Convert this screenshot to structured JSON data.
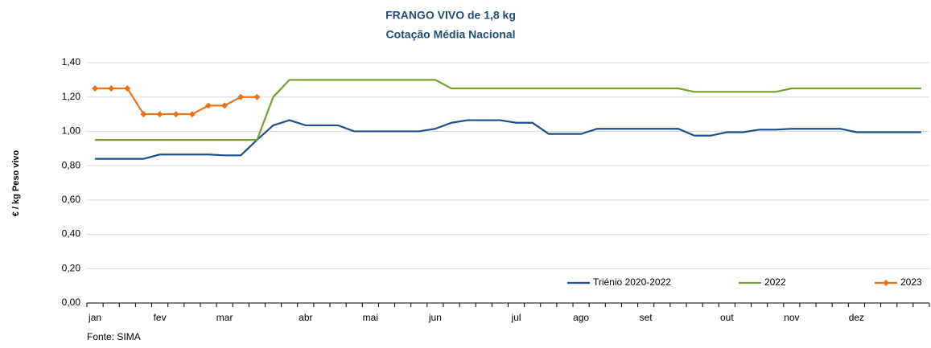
{
  "chart_data": {
    "type": "line",
    "title": "FRANGO VIVO de 1,8 kg",
    "subtitle": "Cotação Média Nacional",
    "y_label": "€ / kg Peso vivo",
    "source": "Fonte: SIMA",
    "categories": [
      "jan",
      null,
      null,
      null,
      "fev",
      null,
      null,
      null,
      "mar",
      null,
      null,
      null,
      null,
      "abr",
      null,
      null,
      null,
      "mai",
      null,
      null,
      null,
      "jun",
      null,
      null,
      null,
      null,
      "jul",
      null,
      null,
      null,
      "ago",
      null,
      null,
      null,
      "set",
      null,
      null,
      null,
      null,
      "out",
      null,
      null,
      null,
      "nov",
      null,
      null,
      null,
      "dez",
      null,
      null,
      null,
      null
    ],
    "series": [
      {
        "name": "Triénio 2020-2022",
        "color": "#1f4e8c",
        "marker": "none",
        "values": [
          0.84,
          0.84,
          0.84,
          0.84,
          0.865,
          0.865,
          0.865,
          0.865,
          0.86,
          0.86,
          0.95,
          1.035,
          1.065,
          1.035,
          1.035,
          1.035,
          1.0,
          1.0,
          1.0,
          1.0,
          1.0,
          1.015,
          1.05,
          1.065,
          1.065,
          1.065,
          1.05,
          1.05,
          0.985,
          0.985,
          0.985,
          1.015,
          1.015,
          1.015,
          1.015,
          1.015,
          1.015,
          0.975,
          0.975,
          0.995,
          0.995,
          1.01,
          1.01,
          1.015,
          1.015,
          1.015,
          1.015,
          0.995,
          0.995,
          0.995,
          0.995,
          0.995
        ]
      },
      {
        "name": "2022",
        "color": "#77a033",
        "marker": "none",
        "values": [
          0.95,
          0.95,
          0.95,
          0.95,
          0.95,
          0.95,
          0.95,
          0.95,
          0.95,
          0.95,
          0.95,
          1.2,
          1.3,
          1.3,
          1.3,
          1.3,
          1.3,
          1.3,
          1.3,
          1.3,
          1.3,
          1.3,
          1.25,
          1.25,
          1.25,
          1.25,
          1.25,
          1.25,
          1.25,
          1.25,
          1.25,
          1.25,
          1.25,
          1.25,
          1.25,
          1.25,
          1.25,
          1.23,
          1.23,
          1.23,
          1.23,
          1.23,
          1.23,
          1.25,
          1.25,
          1.25,
          1.25,
          1.25,
          1.25,
          1.25,
          1.25,
          1.25
        ]
      },
      {
        "name": "2023",
        "color": "#e8731a",
        "marker": "diamond",
        "values": [
          1.25,
          1.25,
          1.25,
          1.1,
          1.1,
          1.1,
          1.1,
          1.15,
          1.15,
          1.2,
          1.2,
          null,
          null,
          null,
          null,
          null,
          null,
          null,
          null,
          null,
          null,
          null,
          null,
          null,
          null,
          null,
          null,
          null,
          null,
          null,
          null,
          null,
          null,
          null,
          null,
          null,
          null,
          null,
          null,
          null,
          null,
          null,
          null,
          null,
          null,
          null,
          null,
          null,
          null,
          null,
          null,
          null
        ]
      }
    ],
    "ylim": [
      0,
      1.4
    ],
    "yticks": [
      {
        "value": 0,
        "label": "0,00"
      },
      {
        "value": 0.2,
        "label": "0,20"
      },
      {
        "value": 0.4,
        "label": "0,40"
      },
      {
        "value": 0.6,
        "label": "0,60"
      },
      {
        "value": 0.8,
        "label": "0,80"
      },
      {
        "value": 1.0,
        "label": "1,00"
      },
      {
        "value": 1.2,
        "label": "1,20"
      },
      {
        "value": 1.4,
        "label": "1,40"
      }
    ],
    "grid": true,
    "legend": "lower-right"
  }
}
